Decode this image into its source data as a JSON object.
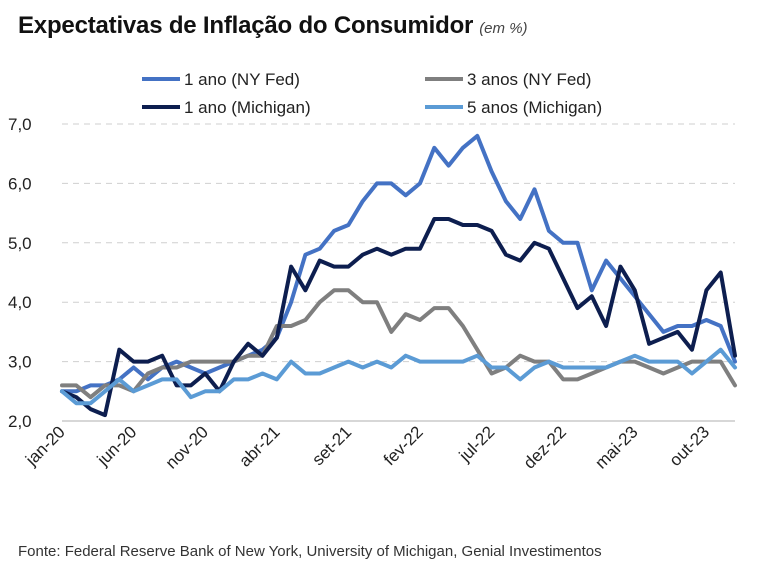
{
  "title": "Expectativas de Inflação do Consumidor",
  "subtitle": "(em %)",
  "source": "Fonte: Federal Reserve Bank of New York, University of Michigan, Genial Investimentos",
  "chart_data": {
    "type": "line",
    "grid": "horizontal dashed",
    "legend_position": "top",
    "ylim": [
      2.0,
      7.0
    ],
    "y_ticks": [
      "2,0",
      "3,0",
      "4,0",
      "5,0",
      "6,0",
      "7,0"
    ],
    "y_tick_values": [
      2.0,
      3.0,
      4.0,
      5.0,
      6.0,
      7.0
    ],
    "x": [
      "jan-20",
      "fev-20",
      "mar-20",
      "abr-20",
      "mai-20",
      "jun-20",
      "jul-20",
      "ago-20",
      "set-20",
      "out-20",
      "nov-20",
      "dez-20",
      "jan-21",
      "fev-21",
      "mar-21",
      "abr-21",
      "mai-21",
      "jun-21",
      "jul-21",
      "ago-21",
      "set-21",
      "out-21",
      "nov-21",
      "dez-21",
      "jan-22",
      "fev-22",
      "mar-22",
      "abr-22",
      "mai-22",
      "jun-22",
      "jul-22",
      "ago-22",
      "set-22",
      "out-22",
      "nov-22",
      "dez-22",
      "jan-23",
      "fev-23",
      "mar-23",
      "abr-23",
      "mai-23",
      "jun-23",
      "jul-23",
      "ago-23",
      "set-23",
      "out-23",
      "nov-23",
      "dez-23"
    ],
    "x_tick_labels": [
      "jan-20",
      "jun-20",
      "nov-20",
      "abr-21",
      "set-21",
      "fev-22",
      "jul-22",
      "dez-22",
      "mai-23",
      "out-23"
    ],
    "x_tick_indices": [
      0,
      5,
      10,
      15,
      20,
      25,
      30,
      35,
      40,
      45
    ],
    "series": [
      {
        "name": "1 ano (NY Fed)",
        "color": "#4472c4",
        "values": [
          2.5,
          2.5,
          2.6,
          2.6,
          2.7,
          2.9,
          2.7,
          2.9,
          3.0,
          2.9,
          2.8,
          2.9,
          3.0,
          3.1,
          3.2,
          3.4,
          4.0,
          4.8,
          4.9,
          5.2,
          5.3,
          5.7,
          6.0,
          6.0,
          5.8,
          6.0,
          6.6,
          6.3,
          6.6,
          6.8,
          6.2,
          5.7,
          5.4,
          5.9,
          5.2,
          5.0,
          5.0,
          4.2,
          4.7,
          4.4,
          4.1,
          3.8,
          3.5,
          3.6,
          3.6,
          3.7,
          3.6,
          3.0
        ]
      },
      {
        "name": "3 anos (NY Fed)",
        "color": "#7f7f7f",
        "values": [
          2.6,
          2.6,
          2.4,
          2.6,
          2.6,
          2.5,
          2.8,
          2.9,
          2.9,
          3.0,
          3.0,
          3.0,
          3.0,
          3.1,
          3.1,
          3.6,
          3.6,
          3.7,
          4.0,
          4.2,
          4.2,
          4.0,
          4.0,
          3.5,
          3.8,
          3.7,
          3.9,
          3.9,
          3.6,
          3.2,
          2.8,
          2.9,
          3.1,
          3.0,
          3.0,
          2.7,
          2.7,
          2.8,
          2.9,
          3.0,
          3.0,
          2.9,
          2.8,
          2.9,
          3.0,
          3.0,
          3.0,
          2.6
        ]
      },
      {
        "name": "1 ano (Michigan)",
        "color": "#0d1e4f",
        "values": [
          2.5,
          2.4,
          2.2,
          2.1,
          3.2,
          3.0,
          3.0,
          3.1,
          2.6,
          2.6,
          2.8,
          2.5,
          3.0,
          3.3,
          3.1,
          3.4,
          4.6,
          4.2,
          4.7,
          4.6,
          4.6,
          4.8,
          4.9,
          4.8,
          4.9,
          4.9,
          5.4,
          5.4,
          5.3,
          5.3,
          5.2,
          4.8,
          4.7,
          5.0,
          4.9,
          4.4,
          3.9,
          4.1,
          3.6,
          4.6,
          4.2,
          3.3,
          3.4,
          3.5,
          3.2,
          4.2,
          4.5,
          3.1
        ]
      },
      {
        "name": "5 anos  (Michigan)",
        "color": "#5b9bd5",
        "values": [
          2.5,
          2.3,
          2.3,
          2.5,
          2.7,
          2.5,
          2.6,
          2.7,
          2.7,
          2.4,
          2.5,
          2.5,
          2.7,
          2.7,
          2.8,
          2.7,
          3.0,
          2.8,
          2.8,
          2.9,
          3.0,
          2.9,
          3.0,
          2.9,
          3.1,
          3.0,
          3.0,
          3.0,
          3.0,
          3.1,
          2.9,
          2.9,
          2.7,
          2.9,
          3.0,
          2.9,
          2.9,
          2.9,
          2.9,
          3.0,
          3.1,
          3.0,
          3.0,
          3.0,
          2.8,
          3.0,
          3.2,
          2.9
        ]
      }
    ]
  }
}
